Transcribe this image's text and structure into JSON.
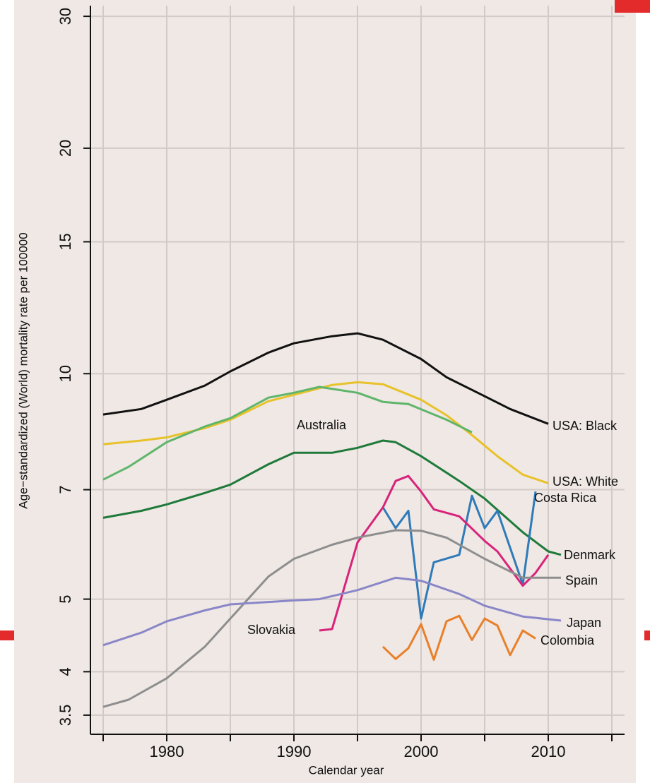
{
  "chart_data": {
    "type": "line",
    "y_label": "Age−standardized (World) mortality rate per 100000",
    "x_label": "Calendar year",
    "log_y": true,
    "grid": true,
    "xlim": [
      1974,
      2016
    ],
    "xticks": [
      1980,
      1990,
      2000,
      2010
    ],
    "xminor": [
      1975,
      1985,
      1995,
      2005,
      2015
    ],
    "ylim": [
      3.3,
      31
    ],
    "yticks": [
      3.5,
      4,
      5,
      7,
      10,
      15,
      20,
      30
    ],
    "series": [
      {
        "name": "USA: Black",
        "color": "#111111",
        "x": [
          1975,
          1978,
          1980,
          1983,
          1985,
          1988,
          1990,
          1993,
          1995,
          1997,
          2000,
          2002,
          2005,
          2007,
          2010
        ],
        "values": [
          8.82,
          8.97,
          9.23,
          9.64,
          10.07,
          10.67,
          10.98,
          11.22,
          11.32,
          11.1,
          10.46,
          9.89,
          9.33,
          8.97,
          8.57
        ]
      },
      {
        "name": "USA: White",
        "color": "#e8c22a",
        "x": [
          1975,
          1978,
          1980,
          1983,
          1985,
          1988,
          1990,
          1993,
          1995,
          1997,
          2000,
          2002,
          2004,
          2006,
          2008,
          2010
        ],
        "values": [
          8.05,
          8.14,
          8.22,
          8.46,
          8.68,
          9.19,
          9.37,
          9.66,
          9.74,
          9.68,
          9.23,
          8.8,
          8.28,
          7.76,
          7.33,
          7.14
        ]
      },
      {
        "name": "Australia",
        "color": "#5fb56a",
        "x": [
          1975,
          1977,
          1980,
          1983,
          1985,
          1988,
          1990,
          1992,
          1995,
          1997,
          1999,
          2002,
          2004
        ],
        "values": [
          7.22,
          7.51,
          8.1,
          8.5,
          8.72,
          9.29,
          9.43,
          9.6,
          9.43,
          9.17,
          9.11,
          8.68,
          8.35
        ]
      },
      {
        "name": "Denmark",
        "color": "#1f7a3a",
        "x": [
          1975,
          1978,
          1980,
          1983,
          1985,
          1988,
          1990,
          1993,
          1995,
          1997,
          1998,
          2000,
          2003,
          2005,
          2008,
          2010,
          2011
        ],
        "values": [
          6.42,
          6.56,
          6.69,
          6.93,
          7.11,
          7.57,
          7.84,
          7.84,
          7.96,
          8.14,
          8.1,
          7.76,
          7.19,
          6.81,
          6.14,
          5.79,
          5.73
        ]
      },
      {
        "name": "Costa Rica",
        "color": "#2f7ab8",
        "x": [
          1997,
          1998,
          1999,
          2000,
          2001,
          2003,
          2004,
          2005,
          2006,
          2008,
          2009
        ],
        "values": [
          6.63,
          6.22,
          6.56,
          4.71,
          5.6,
          5.73,
          6.87,
          6.22,
          6.56,
          5.23,
          6.96
        ]
      },
      {
        "name": "Slovakia",
        "color": "#d8237a",
        "x": [
          1992,
          1993,
          1995,
          1997,
          1998,
          1999,
          2000,
          2001,
          2003,
          2005,
          2006,
          2008,
          2009,
          2010
        ],
        "values": [
          4.54,
          4.56,
          5.95,
          6.63,
          7.19,
          7.3,
          6.96,
          6.59,
          6.45,
          5.98,
          5.79,
          5.21,
          5.42,
          5.73
        ]
      },
      {
        "name": "Spain",
        "color": "#8e8e8e",
        "x": [
          1975,
          1977,
          1980,
          1983,
          1985,
          1988,
          1990,
          1993,
          1995,
          1998,
          2000,
          2002,
          2005,
          2008,
          2011
        ],
        "values": [
          3.59,
          3.67,
          3.92,
          4.32,
          4.71,
          5.36,
          5.66,
          5.91,
          6.04,
          6.18,
          6.17,
          6.04,
          5.66,
          5.34,
          5.34
        ]
      },
      {
        "name": "Japan",
        "color": "#8a87c8",
        "x": [
          1975,
          1978,
          1980,
          1983,
          1985,
          1990,
          1992,
          1995,
          1998,
          2000,
          2003,
          2005,
          2008,
          2011
        ],
        "values": [
          4.34,
          4.51,
          4.67,
          4.83,
          4.92,
          4.98,
          5.0,
          5.14,
          5.34,
          5.29,
          5.08,
          4.9,
          4.74,
          4.68
        ]
      },
      {
        "name": "Colombia",
        "color": "#e8802a",
        "x": [
          1997,
          1998,
          1999,
          2000,
          2001,
          2002,
          2003,
          2004,
          2005,
          2006,
          2007,
          2008,
          2009
        ],
        "values": [
          4.32,
          4.16,
          4.3,
          4.63,
          4.15,
          4.67,
          4.75,
          4.41,
          4.71,
          4.61,
          4.21,
          4.54,
          4.43
        ]
      }
    ]
  }
}
